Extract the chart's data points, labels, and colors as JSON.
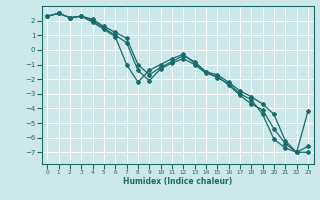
{
  "xlabel": "Humidex (Indice chaleur)",
  "bg_color": "#cce8e8",
  "grid_color": "#ffffff",
  "line_color": "#1a6b6b",
  "xlim": [
    -0.5,
    23.5
  ],
  "ylim": [
    -7.8,
    3.0
  ],
  "xticks": [
    0,
    1,
    2,
    3,
    4,
    5,
    6,
    7,
    8,
    9,
    10,
    11,
    12,
    13,
    14,
    15,
    16,
    17,
    18,
    19,
    20,
    21,
    22,
    23
  ],
  "yticks": [
    2,
    1,
    0,
    -1,
    -2,
    -3,
    -4,
    -5,
    -6,
    -7
  ],
  "line1_x": [
    0,
    1,
    2,
    3,
    4,
    5,
    6,
    7,
    8,
    9,
    10,
    11,
    12,
    13,
    14,
    15,
    16,
    17,
    18,
    19,
    20,
    21,
    22,
    23
  ],
  "line1_y": [
    2.3,
    2.5,
    2.2,
    2.3,
    2.1,
    1.6,
    1.2,
    0.8,
    -1.0,
    -1.7,
    -1.2,
    -0.8,
    -0.4,
    -0.8,
    -1.5,
    -1.7,
    -2.2,
    -2.8,
    -3.2,
    -3.7,
    -4.4,
    -6.2,
    -7.0,
    -7.0
  ],
  "line2_x": [
    0,
    1,
    2,
    3,
    4,
    5,
    6,
    7,
    8,
    9,
    10,
    11,
    12,
    13,
    14,
    15,
    16,
    17,
    18,
    19,
    20,
    21,
    22,
    23
  ],
  "line2_y": [
    2.3,
    2.5,
    2.2,
    2.3,
    1.9,
    1.4,
    0.9,
    -1.0,
    -2.2,
    -1.4,
    -1.0,
    -0.6,
    -0.3,
    -0.9,
    -1.5,
    -1.9,
    -2.3,
    -3.0,
    -3.4,
    -4.4,
    -6.1,
    -6.7,
    -7.0,
    -4.2
  ],
  "line3_x": [
    0,
    1,
    2,
    3,
    4,
    5,
    6,
    7,
    8,
    9,
    10,
    11,
    12,
    13,
    14,
    15,
    16,
    17,
    18,
    19,
    20,
    21,
    22,
    23
  ],
  "line3_y": [
    2.3,
    2.5,
    2.2,
    2.3,
    2.0,
    1.5,
    1.0,
    0.5,
    -1.4,
    -2.1,
    -1.3,
    -0.9,
    -0.6,
    -1.0,
    -1.6,
    -1.8,
    -2.4,
    -3.1,
    -3.7,
    -4.1,
    -5.4,
    -6.4,
    -7.0,
    -6.6
  ]
}
